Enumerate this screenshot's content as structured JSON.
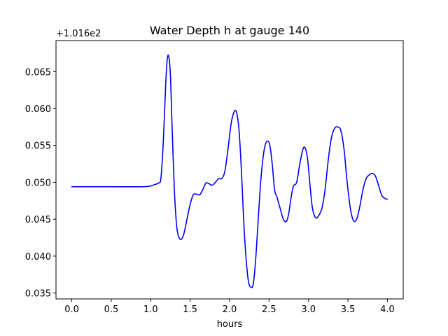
{
  "chart_data": {
    "type": "line",
    "title": "Water Depth h at gauge 140",
    "xlabel": "hours",
    "ylabel": "",
    "offset_label": "+1.016e2",
    "xlim": [
      -0.2,
      4.2
    ],
    "ylim": [
      0.0342,
      0.0692
    ],
    "x_ticks": [
      0.0,
      0.5,
      1.0,
      1.5,
      2.0,
      2.5,
      3.0,
      3.5,
      4.0
    ],
    "x_tick_labels": [
      "0.0",
      "0.5",
      "1.0",
      "1.5",
      "2.0",
      "2.5",
      "3.0",
      "3.5",
      "4.0"
    ],
    "y_ticks": [
      0.035,
      0.04,
      0.045,
      0.05,
      0.055,
      0.06,
      0.065
    ],
    "y_tick_labels": [
      "0.035",
      "0.040",
      "0.045",
      "0.050",
      "0.055",
      "0.060",
      "0.065"
    ],
    "grid": false,
    "series": [
      {
        "color": "#0000ff",
        "x": [
          0.0,
          0.5,
          0.9,
          1.0,
          1.05,
          1.1,
          1.13,
          1.16,
          1.19,
          1.21,
          1.23,
          1.25,
          1.27,
          1.3,
          1.33,
          1.36,
          1.39,
          1.42,
          1.46,
          1.5,
          1.54,
          1.58,
          1.62,
          1.66,
          1.7,
          1.74,
          1.78,
          1.82,
          1.86,
          1.9,
          1.94,
          1.98,
          2.02,
          2.06,
          2.09,
          2.12,
          2.15,
          2.18,
          2.21,
          2.24,
          2.27,
          2.3,
          2.33,
          2.36,
          2.39,
          2.42,
          2.45,
          2.48,
          2.51,
          2.54,
          2.57,
          2.6,
          2.64,
          2.68,
          2.72,
          2.75,
          2.78,
          2.81,
          2.85,
          2.89,
          2.93,
          2.96,
          2.99,
          3.02,
          3.05,
          3.09,
          3.13,
          3.17,
          3.21,
          3.25,
          3.29,
          3.33,
          3.37,
          3.41,
          3.45,
          3.49,
          3.53,
          3.57,
          3.61,
          3.65,
          3.69,
          3.73,
          3.77,
          3.81,
          3.85,
          3.89,
          3.93,
          3.97,
          4.0
        ],
        "y": [
          0.0494,
          0.0494,
          0.0494,
          0.0495,
          0.0497,
          0.0499,
          0.0506,
          0.0555,
          0.0632,
          0.0667,
          0.067,
          0.0645,
          0.058,
          0.049,
          0.044,
          0.0425,
          0.0423,
          0.043,
          0.045,
          0.047,
          0.0483,
          0.0484,
          0.0483,
          0.049,
          0.0499,
          0.0498,
          0.0496,
          0.05,
          0.0505,
          0.0505,
          0.0515,
          0.0545,
          0.058,
          0.0596,
          0.0594,
          0.057,
          0.0515,
          0.0445,
          0.0395,
          0.0365,
          0.0358,
          0.0362,
          0.0395,
          0.0445,
          0.0495,
          0.053,
          0.055,
          0.0556,
          0.055,
          0.0525,
          0.049,
          0.048,
          0.0465,
          0.045,
          0.0447,
          0.0458,
          0.048,
          0.0495,
          0.05,
          0.0525,
          0.0545,
          0.0546,
          0.053,
          0.0495,
          0.0465,
          0.0452,
          0.0455,
          0.0465,
          0.049,
          0.053,
          0.056,
          0.0573,
          0.0575,
          0.057,
          0.0545,
          0.05,
          0.0465,
          0.0448,
          0.045,
          0.0467,
          0.049,
          0.0505,
          0.051,
          0.0512,
          0.0508,
          0.0495,
          0.0482,
          0.0478,
          0.0477
        ]
      }
    ]
  }
}
